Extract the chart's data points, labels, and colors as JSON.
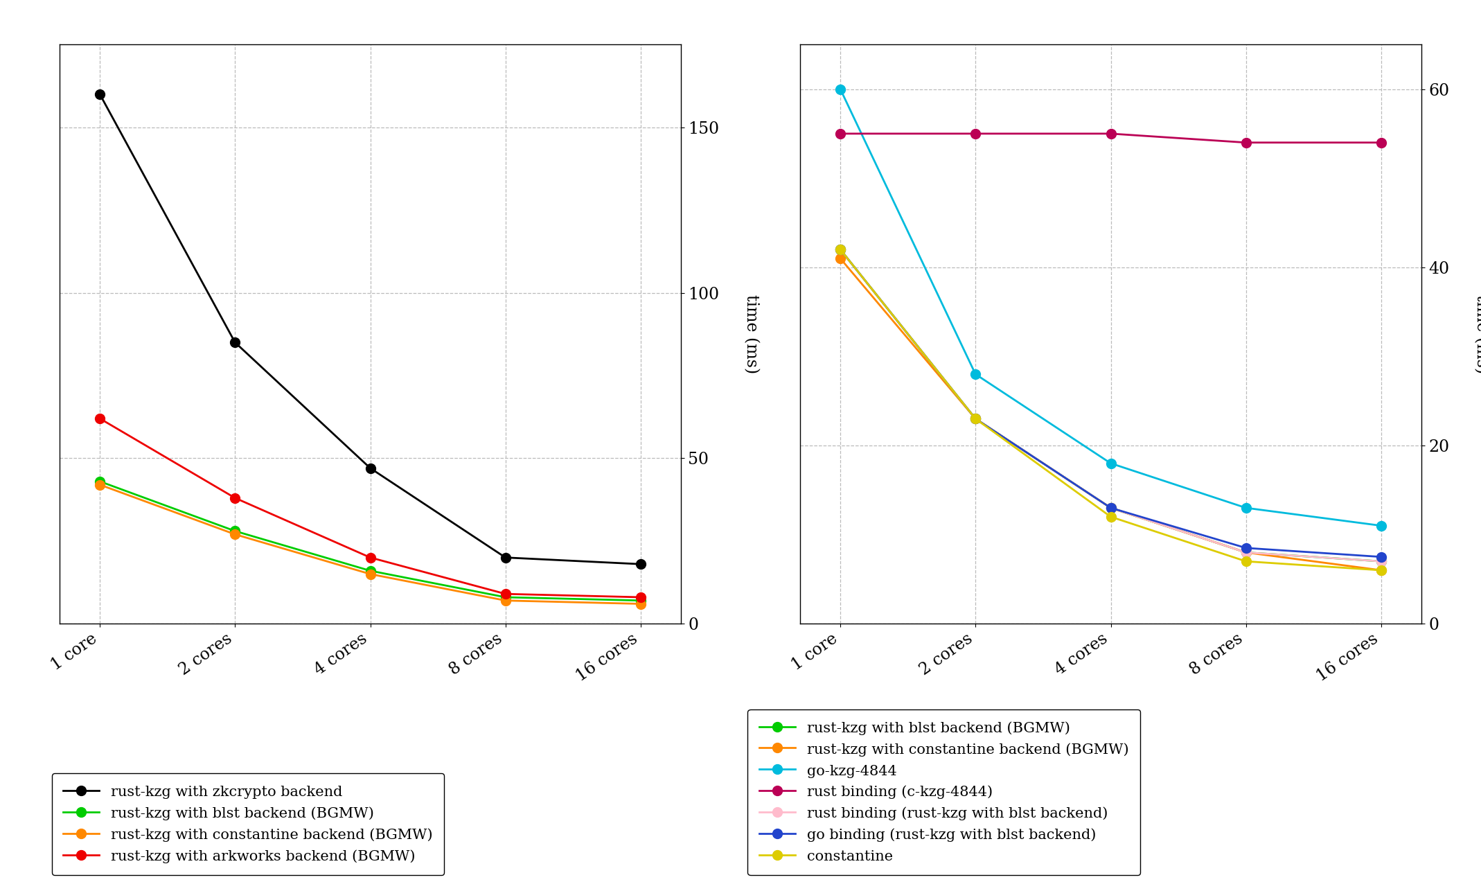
{
  "x_labels": [
    "1 core",
    "2 cores",
    "4 cores",
    "8 cores",
    "16 cores"
  ],
  "x_vals": [
    0,
    1,
    2,
    3,
    4
  ],
  "left_series": [
    {
      "label": "rust-kzg with zkcrypto backend",
      "color": "#000000",
      "values": [
        160,
        85,
        47,
        20,
        18
      ]
    },
    {
      "label": "rust-kzg with blst backend (BGMW)",
      "color": "#00cc00",
      "values": [
        43,
        28,
        16,
        8,
        7
      ]
    },
    {
      "label": "rust-kzg with constantine backend (BGMW)",
      "color": "#ff8800",
      "values": [
        42,
        27,
        15,
        7,
        6
      ]
    },
    {
      "label": "rust-kzg with arkworks backend (BGMW)",
      "color": "#ee0000",
      "values": [
        62,
        38,
        20,
        9,
        8
      ]
    }
  ],
  "right_series": [
    {
      "label": "rust-kzg with blst backend (BGMW)",
      "color": "#00cc00",
      "values": [
        42,
        23,
        13,
        8,
        7
      ]
    },
    {
      "label": "rust-kzg with constantine backend (BGMW)",
      "color": "#ff8800",
      "values": [
        41,
        23,
        13,
        8,
        6
      ]
    },
    {
      "label": "go-kzg-4844",
      "color": "#00bbdd",
      "values": [
        60,
        28,
        18,
        13,
        11
      ]
    },
    {
      "label": "rust binding (c-kzg-4844)",
      "color": "#bb0055",
      "values": [
        55,
        55,
        55,
        54,
        54
      ]
    },
    {
      "label": "rust binding (rust-kzg with blst backend)",
      "color": "#ffbbcc",
      "values": [
        42,
        23,
        13,
        8,
        7
      ]
    },
    {
      "label": "go binding (rust-kzg with blst backend)",
      "color": "#2244cc",
      "values": [
        42,
        23,
        13,
        8.5,
        7.5
      ]
    },
    {
      "label": "constantine",
      "color": "#ddcc00",
      "values": [
        42,
        23,
        12,
        7,
        6
      ]
    }
  ],
  "left_ylim": [
    0,
    175
  ],
  "left_yticks": [
    0,
    50,
    100,
    150
  ],
  "right_ylim": [
    0,
    65
  ],
  "right_yticks": [
    0,
    20,
    40,
    60
  ],
  "marker_size": 10,
  "linewidth": 2.0,
  "tick_font_size": 17,
  "ylabel_font_size": 17,
  "legend_font_size": 15
}
